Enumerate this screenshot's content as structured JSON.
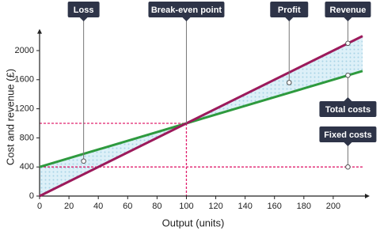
{
  "chart_data": {
    "type": "line",
    "x_label": "Output (units)",
    "y_label": "Cost and revenue (£)",
    "x": [
      0,
      220
    ],
    "series": [
      {
        "name": "Revenue",
        "color": "#9c1a5b",
        "values": [
          0,
          2200
        ],
        "label_x": 210
      },
      {
        "name": "Total costs",
        "color": "#2e9a3e",
        "values": [
          400,
          1720
        ],
        "label_x": 210
      },
      {
        "name": "Fixed costs",
        "color": "#e0206e",
        "values": [
          400,
          400
        ],
        "label_x": 210,
        "dashed": true
      }
    ],
    "annotations": [
      {
        "text": "Loss",
        "x": 30,
        "y": 480
      },
      {
        "text": "Break-even point",
        "x": 100,
        "y": 1000
      },
      {
        "text": "Profit",
        "x": 170,
        "y": 1560
      }
    ],
    "xlim": [
      0,
      220
    ],
    "ylim": [
      0,
      2200
    ],
    "xticks": [
      0,
      20,
      40,
      60,
      80,
      100,
      120,
      140,
      160,
      180,
      200
    ],
    "yticks": [
      0,
      400,
      800,
      1200,
      1600,
      2000
    ],
    "grid": false
  }
}
